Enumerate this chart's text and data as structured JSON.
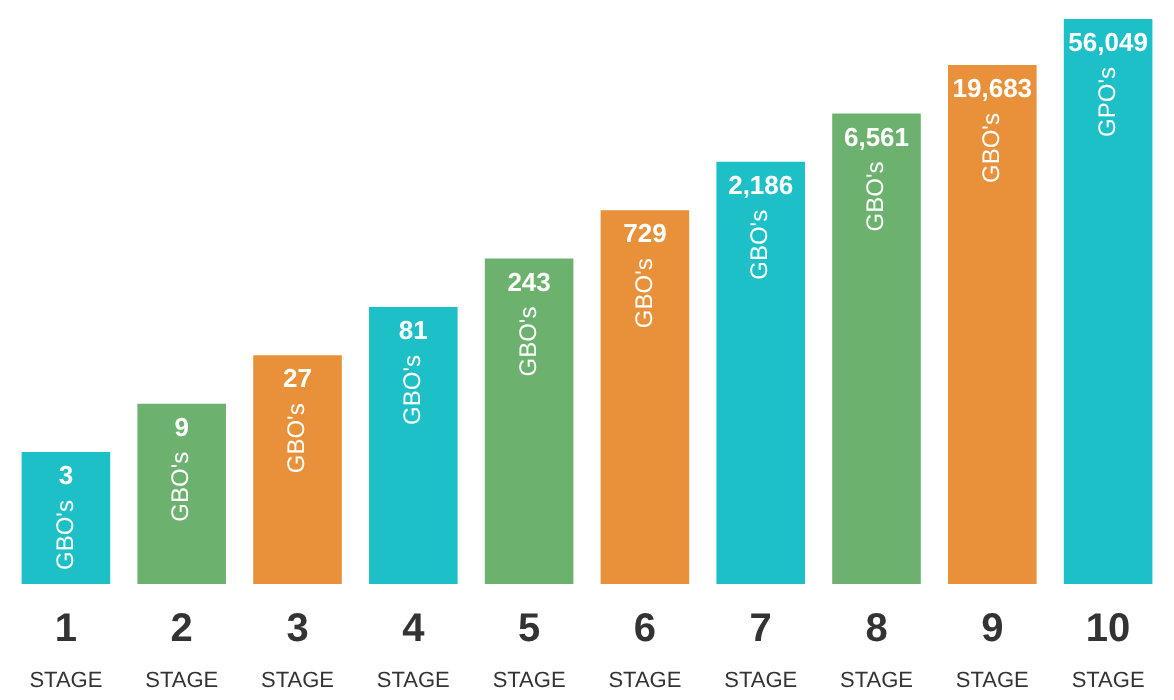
{
  "chart_data": {
    "type": "bar",
    "categories": [
      "1",
      "2",
      "3",
      "4",
      "5",
      "6",
      "7",
      "8",
      "9",
      "10"
    ],
    "values": [
      3,
      9,
      27,
      81,
      243,
      729,
      2186,
      6561,
      19683,
      56049
    ],
    "value_labels": [
      "3",
      "9",
      "27",
      "81",
      "243",
      "729",
      "2,186",
      "6,561",
      "19,683",
      "56,049"
    ],
    "colors": [
      "#1ec0c8",
      "#6cb26e",
      "#e8913a",
      "#1ec0c8",
      "#6cb26e",
      "#e8913a",
      "#1ec0c8",
      "#6cb26e",
      "#e8913a",
      "#1ec0c8"
    ],
    "log": true,
    "ylim": [
      0.15,
      60000
    ],
    "tick_labels": "x",
    "grid": false,
    "legend": false,
    "annotations": [
      "GBO's",
      "GBO's",
      "GBO's",
      "GBO's",
      "GBO's",
      "GBO's",
      "GBO's",
      "GBO's",
      "GBO's",
      "GPO's",
      "STAGE",
      "STAGE",
      "STAGE",
      "STAGE",
      "STAGE",
      "STAGE",
      "STAGE",
      "STAGE",
      "STAGE",
      "STAGE"
    ]
  }
}
